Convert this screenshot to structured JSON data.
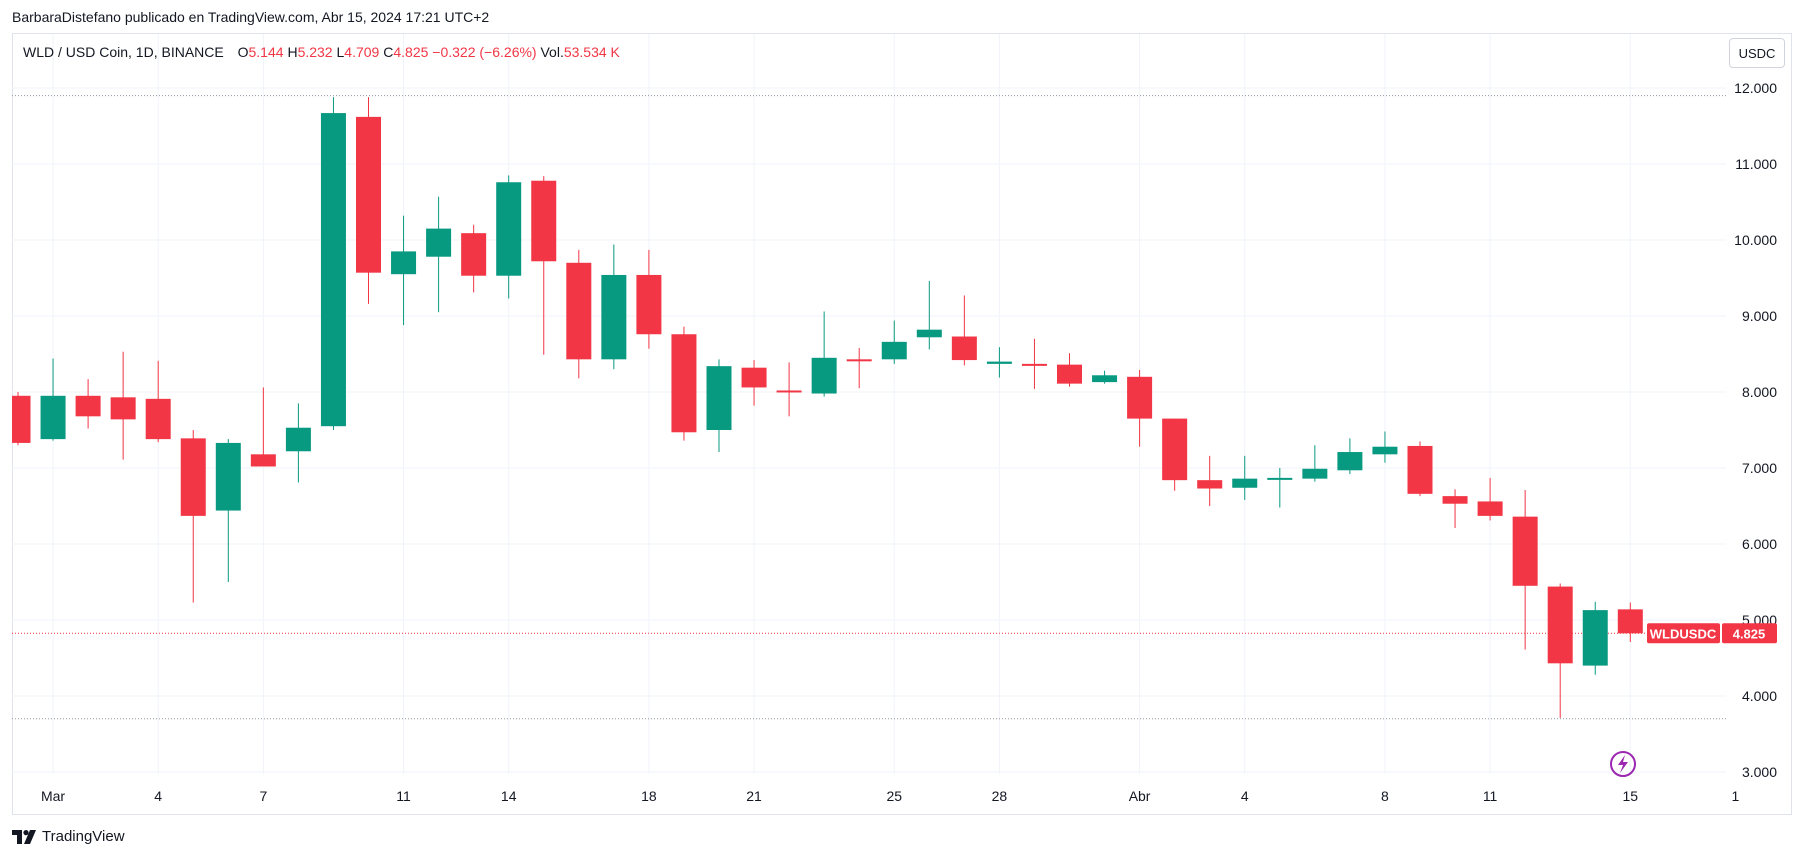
{
  "byline": "BarbaraDistefano publicado en TradingView.com, Abr 15, 2024 17:21 UTC+2",
  "legend": {
    "symbol": "WLD / USD Coin, 1D, BINANCE",
    "open_label": "O",
    "open": "5.144",
    "high_label": "H",
    "high": "5.232",
    "low_label": "L",
    "low": "4.709",
    "close_label": "C",
    "close": "4.825",
    "change": "−0.322 (−6.26%)",
    "volume_label": "Vol.",
    "volume": "53.534 K"
  },
  "unit_button": "USDC",
  "footer": {
    "brand": "TradingView"
  },
  "colors": {
    "up": "#089981",
    "down": "#f23645",
    "grid": "#f0f3fa",
    "dotted": "#9598a1",
    "signal": "#9c27b0"
  },
  "icons": {
    "flash": "lightning-icon",
    "logo": "tradingview-logo-icon"
  },
  "chart_data": {
    "type": "candlestick",
    "title": "WLD / USD Coin, 1D, BINANCE",
    "ylim": [
      2.7,
      12.6
    ],
    "y_ticks": [
      "3.000",
      "4.000",
      "5.000",
      "6.000",
      "7.000",
      "8.000",
      "9.000",
      "10.000",
      "11.000",
      "12.000"
    ],
    "x_ticks": [
      {
        "label": "Mar",
        "index": 1
      },
      {
        "label": "4",
        "index": 4
      },
      {
        "label": "7",
        "index": 7
      },
      {
        "label": "11",
        "index": 11
      },
      {
        "label": "14",
        "index": 14
      },
      {
        "label": "18",
        "index": 18
      },
      {
        "label": "21",
        "index": 21
      },
      {
        "label": "25",
        "index": 25
      },
      {
        "label": "28",
        "index": 28
      },
      {
        "label": "Abr",
        "index": 32
      },
      {
        "label": "4",
        "index": 35
      },
      {
        "label": "8",
        "index": 39
      },
      {
        "label": "11",
        "index": 42
      },
      {
        "label": "15",
        "index": 46
      },
      {
        "label": "1",
        "index": 49
      }
    ],
    "dates": [
      "Feb 29",
      "Mar 1",
      "Mar 2",
      "Mar 3",
      "Mar 4",
      "Mar 5",
      "Mar 6",
      "Mar 7",
      "Mar 8",
      "Mar 9",
      "Mar 10",
      "Mar 11",
      "Mar 12",
      "Mar 13",
      "Mar 14",
      "Mar 15",
      "Mar 16",
      "Mar 17",
      "Mar 18",
      "Mar 19",
      "Mar 20",
      "Mar 21",
      "Mar 22",
      "Mar 23",
      "Mar 24",
      "Mar 25",
      "Mar 26",
      "Mar 27",
      "Mar 28",
      "Mar 29",
      "Mar 30",
      "Mar 31",
      "Apr 1",
      "Apr 2",
      "Apr 3",
      "Apr 4",
      "Apr 5",
      "Apr 6",
      "Apr 7",
      "Apr 8",
      "Apr 9",
      "Apr 10",
      "Apr 11",
      "Apr 12",
      "Apr 13",
      "Apr 14",
      "Apr 15"
    ],
    "open": [
      7.95,
      7.38,
      7.95,
      7.93,
      7.91,
      7.39,
      6.44,
      7.18,
      7.22,
      7.55,
      11.62,
      9.55,
      9.78,
      10.09,
      9.53,
      10.78,
      9.7,
      8.43,
      9.54,
      8.76,
      7.5,
      8.32,
      8.02,
      7.98,
      8.43,
      8.43,
      8.72,
      8.73,
      8.37,
      8.37,
      8.36,
      8.13,
      8.2,
      7.65,
      6.84,
      6.74,
      6.85,
      6.86,
      6.97,
      7.18,
      7.29,
      6.63,
      6.56,
      6.36,
      5.44,
      4.4,
      5.14
    ],
    "high": [
      8.0,
      8.44,
      8.17,
      8.53,
      8.41,
      7.5,
      7.38,
      8.06,
      7.85,
      11.88,
      11.88,
      10.32,
      10.57,
      10.2,
      10.85,
      10.84,
      9.87,
      9.94,
      9.87,
      8.86,
      8.43,
      8.42,
      8.39,
      9.06,
      8.58,
      8.94,
      9.46,
      9.27,
      8.59,
      8.7,
      8.51,
      8.28,
      8.29,
      7.65,
      7.16,
      7.16,
      7.0,
      7.3,
      7.39,
      7.48,
      7.35,
      6.72,
      6.87,
      6.71,
      5.48,
      5.24,
      5.23
    ],
    "low": [
      7.3,
      7.36,
      7.52,
      7.11,
      7.34,
      5.23,
      5.5,
      7.05,
      6.81,
      7.5,
      9.16,
      8.88,
      9.05,
      9.31,
      9.23,
      8.49,
      8.18,
      8.3,
      8.57,
      7.36,
      7.21,
      7.82,
      7.68,
      7.94,
      8.05,
      8.37,
      8.56,
      8.35,
      8.19,
      8.04,
      8.07,
      8.11,
      7.28,
      6.7,
      6.5,
      6.58,
      6.48,
      6.82,
      6.92,
      7.07,
      6.63,
      6.21,
      6.31,
      4.61,
      3.71,
      4.28,
      4.71
    ],
    "close": [
      7.33,
      7.95,
      7.68,
      7.64,
      7.38,
      6.37,
      7.33,
      7.02,
      7.53,
      11.67,
      9.57,
      9.85,
      10.15,
      9.53,
      10.76,
      9.72,
      8.43,
      9.54,
      8.76,
      7.47,
      8.34,
      8.06,
      8.0,
      8.45,
      8.41,
      8.66,
      8.82,
      8.42,
      8.4,
      8.35,
      8.11,
      8.22,
      7.65,
      6.84,
      6.73,
      6.86,
      6.87,
      6.99,
      7.21,
      7.28,
      6.66,
      6.53,
      6.37,
      5.45,
      4.43,
      5.13,
      4.825
    ],
    "current_price": {
      "label": "WLDUSDC",
      "value": "4.825"
    },
    "reference_lines": [
      11.9,
      3.7
    ]
  }
}
